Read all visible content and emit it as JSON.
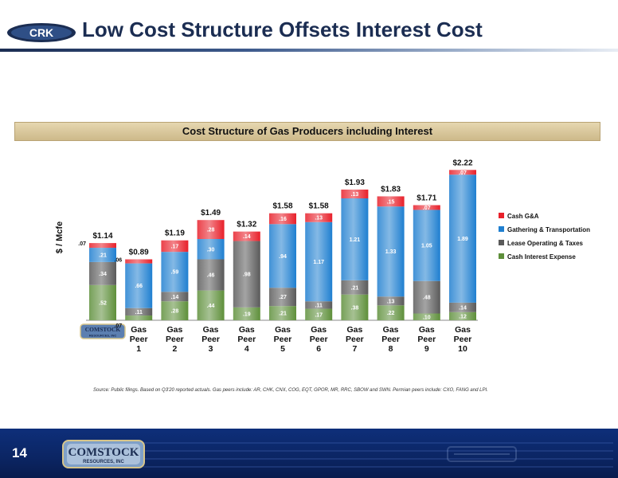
{
  "page": {
    "title": "Low Cost Structure Offsets Interest Cost",
    "page_number": "14",
    "banner": "Cost Structure of Gas Producers including Interest",
    "source_note": "Source: Public filings.  Based on Q3'20 reported actuals. Gas peers include: AR, CHK, CNX, COG, EQT, GPOR, MR, RRC, SBOW and SWN.  Permian peers include: CXO, FANG and LPI.",
    "logo_text_line1": "COMSTOCK",
    "logo_text_line2": "RESOURCES, INC",
    "top_logo_text": "CRK"
  },
  "colors": {
    "cash_ga": "#e8202a",
    "gathering": "#1f7fd0",
    "lease": "#5a5a5a",
    "interest": "#5e8f3a",
    "navy": "#1b2d52"
  },
  "chart_data": {
    "type": "bar",
    "stacked": true,
    "ylabel": "$ / Mcfe",
    "ylim": [
      0,
      2.3
    ],
    "grid": false,
    "legend_placement": "right",
    "categories": [
      {
        "id": "comstock",
        "label": "",
        "logo": true
      },
      {
        "id": "gp1",
        "lines": [
          "Gas",
          "Peer",
          "1"
        ]
      },
      {
        "id": "gp2",
        "lines": [
          "Gas",
          "Peer",
          "2"
        ]
      },
      {
        "id": "gp3",
        "lines": [
          "Gas",
          "Peer",
          "3"
        ]
      },
      {
        "id": "gp4",
        "lines": [
          "Gas",
          "Peer",
          "4"
        ]
      },
      {
        "id": "gp5",
        "lines": [
          "Gas",
          "Peer",
          "5"
        ]
      },
      {
        "id": "gp6",
        "lines": [
          "Gas",
          "Peer",
          "6"
        ]
      },
      {
        "id": "gp7",
        "lines": [
          "Gas",
          "Peer",
          "7"
        ]
      },
      {
        "id": "gp8",
        "lines": [
          "Gas",
          "Peer",
          "8"
        ]
      },
      {
        "id": "gp9",
        "lines": [
          "Gas",
          "Peer",
          "9"
        ]
      },
      {
        "id": "gp10",
        "lines": [
          "Gas",
          "Peer",
          "10"
        ]
      }
    ],
    "totals": [
      "$1.14",
      "$0.89",
      "$1.19",
      "$1.49",
      "$1.32",
      "$1.58",
      "$1.58",
      "$1.93",
      "$1.83",
      "$1.71",
      "$2.22"
    ],
    "series": [
      {
        "name": "Cash Interest Expense",
        "color_key": "interest",
        "values": [
          0.52,
          0.07,
          0.28,
          0.44,
          0.19,
          0.21,
          0.17,
          0.38,
          0.22,
          0.1,
          0.12
        ],
        "labels": [
          ".52",
          ".07",
          ".28",
          ".44",
          ".19",
          ".21",
          ".17",
          ".38",
          ".22",
          ".10",
          ".12"
        ]
      },
      {
        "name": "Lease Operating & Taxes",
        "color_key": "lease",
        "values": [
          0.34,
          0.11,
          0.14,
          0.46,
          0.98,
          0.27,
          0.11,
          0.21,
          0.13,
          0.48,
          0.14
        ],
        "labels": [
          ".34",
          ".11",
          ".14",
          ".46",
          ".98",
          ".27",
          ".11",
          ".21",
          ".13",
          ".48",
          ".14"
        ]
      },
      {
        "name": "Gathering & Transportation",
        "color_key": "gathering",
        "values": [
          0.21,
          0.66,
          0.59,
          0.3,
          0.0,
          0.94,
          1.17,
          1.21,
          1.33,
          1.05,
          1.89
        ],
        "labels": [
          ".21",
          ".66",
          ".59",
          ".30",
          "",
          ".94",
          "1.17",
          "1.21",
          "1.33",
          "1.05",
          "1.89"
        ]
      },
      {
        "name": "Cash G&A",
        "color_key": "cash_ga",
        "values": [
          0.07,
          0.06,
          0.17,
          0.28,
          0.14,
          0.16,
          0.13,
          0.13,
          0.15,
          0.07,
          0.07
        ],
        "labels": [
          ".07",
          ".06",
          ".17",
          ".28",
          ".14",
          ".16",
          ".13",
          ".13",
          ".15",
          ".07",
          ".07"
        ]
      }
    ],
    "outside_labels": [
      {
        "bar": 0,
        "series": 3,
        "side": "left"
      },
      {
        "bar": 1,
        "series": 0,
        "side": "left"
      },
      {
        "bar": 1,
        "series": 3,
        "side": "left"
      }
    ],
    "legend_order": [
      3,
      2,
      1,
      0
    ]
  }
}
